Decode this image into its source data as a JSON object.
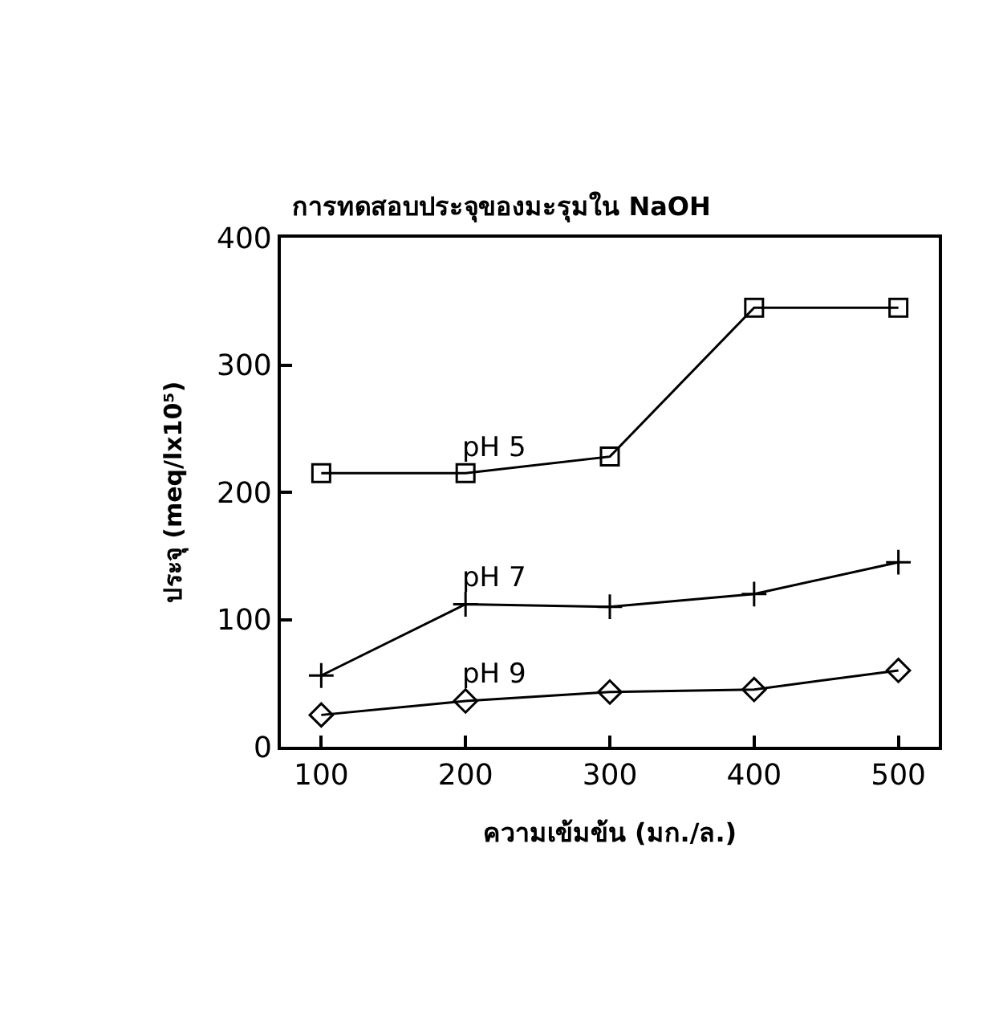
{
  "chart_data": {
    "type": "line",
    "title": "การทดสอบประจุของมะรุมใน NaOH",
    "xlabel": "ความเข้มข้น (มก./ล.)",
    "ylabel": "ประจุ (meq/lx10⁵)",
    "x": [
      100,
      200,
      300,
      400,
      500
    ],
    "series": [
      {
        "name": "pH 5",
        "color": "#000000",
        "marker": "square",
        "values": [
          215,
          215,
          228,
          345,
          345
        ]
      },
      {
        "name": "pH 7",
        "color": "#000000",
        "marker": "cross",
        "values": [
          56,
          112,
          110,
          120,
          145
        ]
      },
      {
        "name": "pH 9",
        "color": "#000000",
        "marker": "diamond",
        "values": [
          25,
          36,
          43,
          45,
          60
        ]
      }
    ],
    "xlim": [
      72,
      528
    ],
    "xticks": [
      100,
      200,
      300,
      400,
      500
    ],
    "ylim": [
      0,
      400
    ],
    "yticks": [
      0,
      100,
      200,
      300,
      400
    ],
    "grid": false,
    "legend": false,
    "line_style": "solid"
  }
}
